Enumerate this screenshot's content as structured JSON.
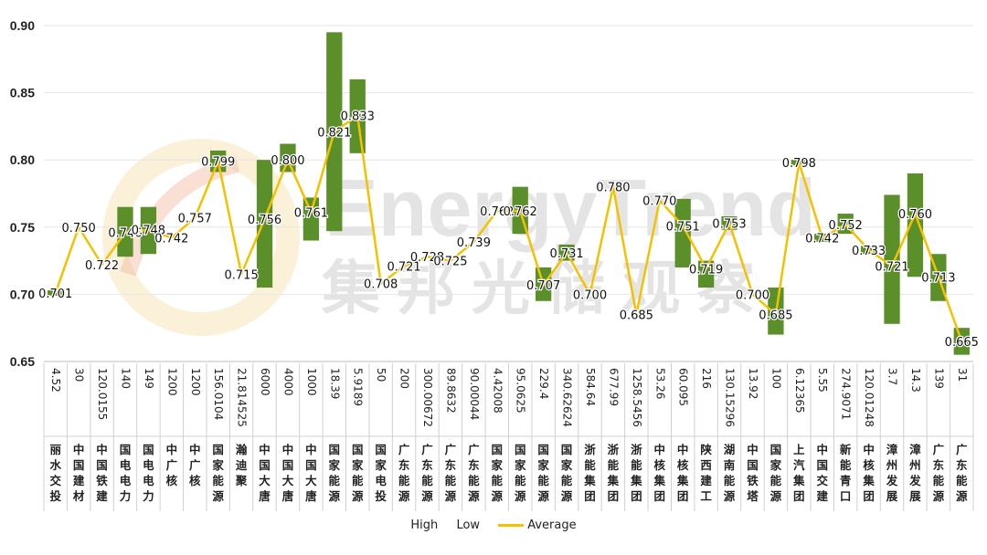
{
  "chart_data": {
    "type": "stock",
    "watermark": {
      "brand": "EnergyTrend",
      "sub": "集邦光储观察"
    },
    "ylim": [
      0.65,
      0.9
    ],
    "yticks": [
      "0.65",
      "0.70",
      "0.75",
      "0.80",
      "0.85",
      "0.90"
    ],
    "legend": [
      "High",
      "Low",
      "Average"
    ],
    "colors": {
      "bar": "#5a8f29",
      "line": "#f2c200"
    },
    "categories": [
      {
        "company": "丽水交投",
        "capacity": "4.52",
        "low": 0.699,
        "high": 0.703,
        "avg": 0.701,
        "avg_label": "0.701"
      },
      {
        "company": "中国建材",
        "capacity": "30",
        "low": null,
        "high": null,
        "avg": 0.75,
        "avg_label": "0.750"
      },
      {
        "company": "中国铁建",
        "capacity": "120.0155",
        "low": null,
        "high": null,
        "avg": 0.722,
        "avg_label": "0.722"
      },
      {
        "company": "国电电力",
        "capacity": "140",
        "low": 0.728,
        "high": 0.765,
        "avg": 0.746,
        "avg_label": "0.746"
      },
      {
        "company": "国电电力",
        "capacity": "149",
        "low": 0.73,
        "high": 0.765,
        "avg": 0.748,
        "avg_label": "0.748"
      },
      {
        "company": "中广核",
        "capacity": "1200",
        "low": null,
        "high": null,
        "avg": 0.742,
        "avg_label": "0.742"
      },
      {
        "company": "中广核",
        "capacity": "1200",
        "low": null,
        "high": null,
        "avg": 0.757,
        "avg_label": "0.757"
      },
      {
        "company": "国家能源",
        "capacity": "156.0104",
        "low": 0.791,
        "high": 0.807,
        "avg": 0.799,
        "avg_label": "0.799"
      },
      {
        "company": "瀚迪聚",
        "capacity": "21.814525",
        "low": null,
        "high": null,
        "avg": 0.715,
        "avg_label": "0.715"
      },
      {
        "company": "中国大唐",
        "capacity": "6000",
        "low": 0.705,
        "high": 0.8,
        "avg": 0.756,
        "avg_label": "0.756"
      },
      {
        "company": "中国大唐",
        "capacity": "4000",
        "low": 0.791,
        "high": 0.812,
        "avg": 0.8,
        "avg_label": "0.800"
      },
      {
        "company": "中国大唐",
        "capacity": "1000",
        "low": 0.74,
        "high": 0.772,
        "avg": 0.761,
        "avg_label": "0.761"
      },
      {
        "company": "国家能源",
        "capacity": "18.39",
        "low": 0.747,
        "high": 0.895,
        "avg": 0.821,
        "avg_label": "0.821"
      },
      {
        "company": "国家能源",
        "capacity": "5.9189",
        "low": 0.805,
        "high": 0.86,
        "avg": 0.833,
        "avg_label": "0.833"
      },
      {
        "company": "国家电投",
        "capacity": "50",
        "low": null,
        "high": null,
        "avg": 0.708,
        "avg_label": "0.708"
      },
      {
        "company": "广东能源",
        "capacity": "200",
        "low": null,
        "high": null,
        "avg": 0.721,
        "avg_label": "0.721"
      },
      {
        "company": "广东能源",
        "capacity": "300.00672",
        "low": null,
        "high": null,
        "avg": 0.728,
        "avg_label": "0.728"
      },
      {
        "company": "广东能源",
        "capacity": "89.8632",
        "low": null,
        "high": null,
        "avg": 0.725,
        "avg_label": "0.725"
      },
      {
        "company": "广东能源",
        "capacity": "90.00044",
        "low": null,
        "high": null,
        "avg": 0.739,
        "avg_label": "0.739"
      },
      {
        "company": "国家能源",
        "capacity": "4.42008",
        "low": null,
        "high": null,
        "avg": 0.762,
        "avg_label": "0.762"
      },
      {
        "company": "国家能源",
        "capacity": "95.0625",
        "low": 0.745,
        "high": 0.78,
        "avg": 0.762,
        "avg_label": "0.762"
      },
      {
        "company": "国家能源",
        "capacity": "229.4",
        "low": 0.695,
        "high": 0.72,
        "avg": 0.707,
        "avg_label": "0.707"
      },
      {
        "company": "国家能源",
        "capacity": "340.62624",
        "low": 0.725,
        "high": 0.737,
        "avg": 0.731,
        "avg_label": "0.731"
      },
      {
        "company": "浙能集团",
        "capacity": "584.64",
        "low": null,
        "high": null,
        "avg": 0.7,
        "avg_label": "0.700"
      },
      {
        "company": "浙能集团",
        "capacity": "677.99",
        "low": null,
        "high": null,
        "avg": 0.78,
        "avg_label": "0.780"
      },
      {
        "company": "浙能集团",
        "capacity": "1258.5456",
        "low": null,
        "high": null,
        "avg": 0.685,
        "avg_label": "0.685"
      },
      {
        "company": "中核集团",
        "capacity": "53.26",
        "low": null,
        "high": null,
        "avg": 0.77,
        "avg_label": "0.770"
      },
      {
        "company": "中核集团",
        "capacity": "60.095",
        "low": 0.72,
        "high": 0.771,
        "avg": 0.751,
        "avg_label": "0.751"
      },
      {
        "company": "陕西建工",
        "capacity": "216",
        "low": 0.705,
        "high": 0.725,
        "avg": 0.719,
        "avg_label": "0.719"
      },
      {
        "company": "湖南能源",
        "capacity": "130.15296",
        "low": 0.748,
        "high": 0.758,
        "avg": 0.753,
        "avg_label": "0.753"
      },
      {
        "company": "中国铁塔",
        "capacity": "13.92",
        "low": null,
        "high": null,
        "avg": 0.7,
        "avg_label": "0.700"
      },
      {
        "company": "国家能源",
        "capacity": "100",
        "low": 0.67,
        "high": 0.705,
        "avg": 0.685,
        "avg_label": "0.685"
      },
      {
        "company": "上汽集团",
        "capacity": "6.12365",
        "low": 0.796,
        "high": 0.8,
        "avg": 0.798,
        "avg_label": "0.798"
      },
      {
        "company": "中国交建",
        "capacity": "5.55",
        "low": 0.739,
        "high": 0.745,
        "avg": 0.742,
        "avg_label": "0.742"
      },
      {
        "company": "新能青口",
        "capacity": "274.9071",
        "low": 0.745,
        "high": 0.76,
        "avg": 0.752,
        "avg_label": "0.752"
      },
      {
        "company": "中核集团",
        "capacity": "120.01248",
        "low": 0.73,
        "high": 0.736,
        "avg": 0.733,
        "avg_label": "0.733"
      },
      {
        "company": "漳州发展",
        "capacity": "3.7",
        "low": 0.678,
        "high": 0.774,
        "avg": 0.721,
        "avg_label": "0.721"
      },
      {
        "company": "漳州发展",
        "capacity": "14.3",
        "low": 0.713,
        "high": 0.79,
        "avg": 0.76,
        "avg_label": "0.760"
      },
      {
        "company": "广东能源",
        "capacity": "139",
        "low": 0.695,
        "high": 0.73,
        "avg": 0.713,
        "avg_label": "0.713"
      },
      {
        "company": "广东能源",
        "capacity": "31",
        "low": 0.655,
        "high": 0.675,
        "avg": 0.665,
        "avg_label": "0.665"
      }
    ]
  }
}
